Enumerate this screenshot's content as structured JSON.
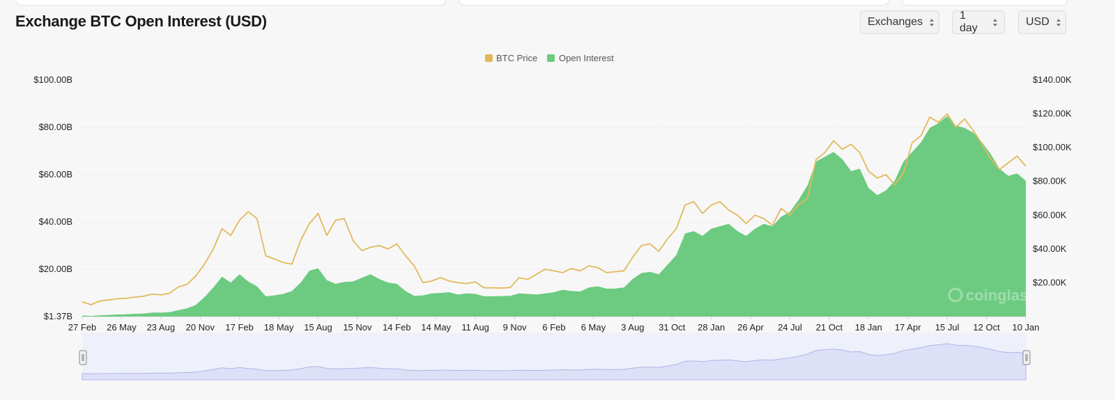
{
  "header": {
    "title": "Exchange BTC Open Interest (USD)",
    "selects": [
      {
        "label": "Exchanges",
        "icon": "chevron-up-down-icon"
      },
      {
        "label": "1 day",
        "icon": "chevron-up-down-icon"
      },
      {
        "label": "USD",
        "icon": "chevron-up-down-icon"
      }
    ]
  },
  "chart_data": {
    "type": "area",
    "legend_position": "top-center",
    "grid": true,
    "x_ticks": [
      "27 Feb",
      "26 May",
      "23 Aug",
      "20 Nov",
      "17 Feb",
      "18 May",
      "15 Aug",
      "15 Nov",
      "14 Feb",
      "14 May",
      "11 Aug",
      "9 Nov",
      "6 Feb",
      "6 May",
      "3 Aug",
      "31 Oct",
      "28 Jan",
      "26 Apr",
      "24 Jul",
      "21 Oct",
      "18 Jan",
      "17 Apr",
      "15 Jul",
      "12 Oct",
      "10 Jan"
    ],
    "y_left": {
      "ticks": [
        "$100.00B",
        "$80.00B",
        "$60.00B",
        "$40.00B",
        "$20.00B",
        "$1.37B"
      ],
      "min": 1.37,
      "max": 100
    },
    "y_right": {
      "ticks": [
        "$140.00K",
        "$120.00K",
        "$100.00K",
        "$80.00K",
        "$60.00K",
        "$40.00K",
        "$20.00K"
      ],
      "min": 0,
      "max": 140
    },
    "series": [
      {
        "name": "BTC Price",
        "color": "#e2b95a",
        "axis": "right",
        "values": [
          8.7,
          7.0,
          9.2,
          9.8,
          10.5,
          10.8,
          11.5,
          12.0,
          13.2,
          12.8,
          13.8,
          17.5,
          19.0,
          24.0,
          31.0,
          40.0,
          52.0,
          48.0,
          57.0,
          62.0,
          58.0,
          36.0,
          34.0,
          32.0,
          31.0,
          45.0,
          55.0,
          61.0,
          48.0,
          57.0,
          58.0,
          45.0,
          39.0,
          41.0,
          42.0,
          40.0,
          43.0,
          36.0,
          30.0,
          20.0,
          21.0,
          23.0,
          21.0,
          20.0,
          19.5,
          20.5,
          17.0,
          17.0,
          16.8,
          17.2,
          23.0,
          22.0,
          25.0,
          28.0,
          27.0,
          26.0,
          28.5,
          27.0,
          30.0,
          29.0,
          26.0,
          26.5,
          27.0,
          35.0,
          42.0,
          43.0,
          38.5,
          46.0,
          52.0,
          66.0,
          68.0,
          61.0,
          66.0,
          68.0,
          63.0,
          60.0,
          55.0,
          60.0,
          58.0,
          54.0,
          64.0,
          60.0,
          66.0,
          70.0,
          93.0,
          97.0,
          104.0,
          99.0,
          102.0,
          97.0,
          86.0,
          82.0,
          84.0,
          78.0,
          85.0,
          103.0,
          107.0,
          118.0,
          115.0,
          120.0,
          112.0,
          117.0,
          110.0,
          102.0,
          93.0,
          87.0,
          91.0,
          95.0,
          89.0
        ]
      },
      {
        "name": "Open Interest",
        "color": "#6ccb80",
        "axis": "left",
        "values": [
          1.8,
          1.6,
          1.9,
          2.0,
          2.2,
          2.3,
          2.5,
          2.6,
          3.0,
          3.0,
          3.2,
          4.0,
          4.8,
          6.2,
          9.5,
          13.5,
          18.0,
          15.5,
          19.0,
          16.0,
          14.0,
          9.8,
          10.2,
          10.8,
          12.0,
          15.5,
          20.5,
          21.5,
          16.5,
          15.0,
          15.8,
          16.0,
          17.5,
          19.0,
          17.0,
          15.5,
          15.0,
          12.0,
          10.0,
          10.2,
          11.0,
          11.2,
          11.5,
          10.5,
          11.0,
          10.8,
          9.8,
          9.8,
          9.9,
          10.0,
          11.0,
          10.8,
          10.5,
          11.0,
          11.5,
          12.5,
          12.0,
          11.8,
          13.5,
          14.0,
          13.0,
          13.0,
          13.5,
          17.0,
          19.5,
          20.0,
          19.0,
          23.0,
          27.0,
          36.0,
          37.0,
          35.0,
          38.0,
          39.0,
          40.0,
          37.0,
          35.0,
          38.0,
          40.0,
          39.0,
          43.0,
          45.0,
          50.0,
          56.0,
          66.0,
          68.0,
          70.0,
          67.0,
          62.0,
          63.0,
          55.0,
          52.0,
          54.0,
          58.0,
          66.0,
          70.0,
          74.0,
          80.0,
          82.0,
          85.0,
          81.0,
          80.0,
          78.0,
          74.0,
          69.0,
          63.0,
          60.0,
          61.0,
          58.0
        ]
      }
    ],
    "navigator": {
      "fill": "#dde0f7",
      "line": "#aeb6e8"
    }
  },
  "watermark": {
    "text": "coinglass",
    "icon": "coinglass-logo-icon"
  }
}
